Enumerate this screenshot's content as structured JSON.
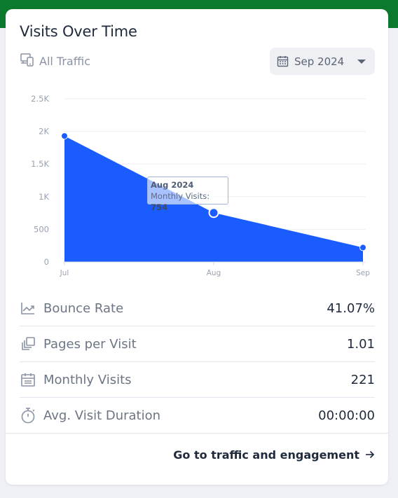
{
  "card": {
    "title": "Visits Over Time",
    "traffic_label": "All Traffic",
    "date_select": "Sep 2024",
    "footer_link": "Go to traffic and engagement"
  },
  "chart_data": {
    "type": "area",
    "x": [
      "Jul",
      "Aug",
      "Sep"
    ],
    "series": [
      {
        "name": "Monthly Visits",
        "values": [
          1930,
          754,
          221
        ]
      }
    ],
    "y_ticks": [
      "0",
      "500",
      "1K",
      "1.5K",
      "2K",
      "2.5K"
    ],
    "ylim": [
      0,
      2500
    ],
    "grid": true,
    "color": "#1b5cff",
    "tooltip": {
      "date": "Aug 2024",
      "label": "Monthly Visits:",
      "value": "754"
    }
  },
  "metrics": [
    {
      "icon": "trend-down-icon",
      "label": "Bounce Rate",
      "value": "41.07%"
    },
    {
      "icon": "pages-icon",
      "label": "Pages per Visit",
      "value": "1.01"
    },
    {
      "icon": "calendar-icon",
      "label": "Monthly Visits",
      "value": "221"
    },
    {
      "icon": "stopwatch-icon",
      "label": "Avg. Visit Duration",
      "value": "00:00:00"
    }
  ],
  "colors": {
    "header_green": "#0b7a2e",
    "accent_blue": "#1b5cff",
    "text_dark": "#1f2a3d",
    "text_muted": "#6c7584"
  }
}
